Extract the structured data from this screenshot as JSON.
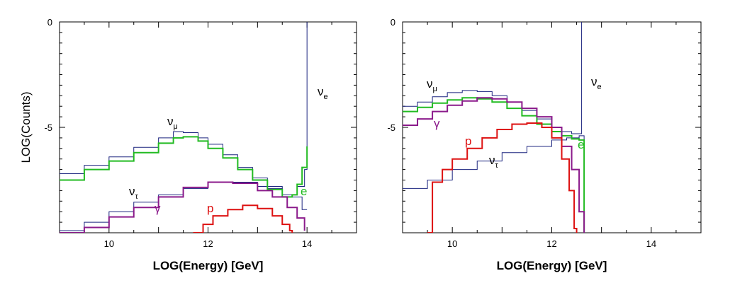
{
  "figure": {
    "ylabel": "LOG(Counts)"
  },
  "chart_data": [
    {
      "type": "line",
      "xlabel": "LOG(Energy) [GeV]",
      "ylabel": "LOG(Counts)",
      "xlim": [
        9,
        15
      ],
      "ylim": [
        -10,
        0
      ],
      "xticks": [
        "10",
        "12",
        "14"
      ],
      "yticks": [
        "0",
        "-5"
      ],
      "step": true,
      "series": [
        {
          "name": "ν_μ",
          "label": "ν",
          "sub": "μ",
          "color": "#1a237e",
          "x": [
            9.0,
            9.5,
            10.0,
            10.5,
            11.0,
            11.3,
            11.5,
            11.8,
            12.0,
            12.3,
            12.6,
            12.9,
            13.2,
            13.5,
            13.8,
            13.95,
            14.0
          ],
          "y": [
            -7.2,
            -6.8,
            -6.4,
            -5.95,
            -5.5,
            -5.2,
            -5.25,
            -5.5,
            -5.8,
            -6.3,
            -6.9,
            -7.4,
            -7.9,
            -8.2,
            -7.8,
            -7.0,
            0
          ]
        },
        {
          "name": "ν_τ",
          "label": "ν",
          "sub": "τ",
          "color": "#1a237e",
          "x": [
            9.0,
            9.5,
            10.0,
            10.5,
            11.0,
            11.5,
            12.0,
            12.5,
            13.0,
            13.5,
            13.9,
            14.0
          ],
          "y": [
            -9.9,
            -9.5,
            -9.0,
            -8.55,
            -8.2,
            -7.9,
            -7.6,
            -7.6,
            -7.8,
            -8.3,
            -8.9,
            -8.9
          ]
        },
        {
          "name": "e",
          "label": "e",
          "sub": "",
          "color": "#22bb22",
          "x": [
            9.0,
            9.5,
            10.0,
            10.5,
            11.0,
            11.3,
            11.5,
            11.8,
            12.0,
            12.3,
            12.6,
            12.9,
            13.2,
            13.5,
            13.7,
            13.8,
            13.9,
            14.0
          ],
          "y": [
            -7.5,
            -7.0,
            -6.6,
            -6.2,
            -5.75,
            -5.5,
            -5.45,
            -5.65,
            -6.0,
            -6.45,
            -7.0,
            -7.5,
            -7.95,
            -8.3,
            -8.2,
            -7.7,
            -6.9,
            -5.9
          ]
        },
        {
          "name": "γ",
          "label": "γ",
          "sub": "",
          "color": "#8b1a8b",
          "x": [
            9.0,
            9.5,
            10.0,
            10.5,
            11.0,
            11.5,
            12.0,
            12.5,
            13.0,
            13.3,
            13.6,
            13.8,
            13.95
          ],
          "y": [
            -10.0,
            -9.75,
            -9.25,
            -8.8,
            -8.3,
            -7.85,
            -7.6,
            -7.65,
            -8.0,
            -8.3,
            -8.8,
            -9.3,
            -9.9
          ]
        },
        {
          "name": "p",
          "label": "p",
          "sub": "",
          "color": "#dd1111",
          "x": [
            11.7,
            11.9,
            12.1,
            12.4,
            12.7,
            13.0,
            13.3,
            13.5,
            13.65,
            13.7
          ],
          "y": [
            -10.0,
            -9.6,
            -9.2,
            -8.9,
            -8.7,
            -8.85,
            -9.2,
            -9.6,
            -9.9,
            -10.0
          ]
        }
      ]
    },
    {
      "type": "line",
      "xlabel": "LOG(Energy) [GeV]",
      "ylabel": "",
      "xlim": [
        9,
        15
      ],
      "ylim": [
        -10,
        0
      ],
      "xticks": [
        "10",
        "12",
        "14"
      ],
      "yticks": [
        "0",
        "-5"
      ],
      "step": true,
      "series": [
        {
          "name": "ν_μ",
          "label": "ν",
          "sub": "μ",
          "color": "#1a237e",
          "x": [
            9.0,
            9.3,
            9.6,
            9.9,
            10.2,
            10.5,
            10.8,
            11.1,
            11.4,
            11.7,
            12.0,
            12.2,
            12.4,
            12.55,
            12.6
          ],
          "y": [
            -4.0,
            -3.8,
            -3.55,
            -3.35,
            -3.25,
            -3.3,
            -3.5,
            -3.8,
            -4.2,
            -4.6,
            -5.0,
            -5.2,
            -5.3,
            -5.3,
            0
          ]
        },
        {
          "name": "ν_τ",
          "label": "ν",
          "sub": "τ",
          "color": "#1a237e",
          "x": [
            9.0,
            9.5,
            10.0,
            10.5,
            11.0,
            11.5,
            12.0,
            12.3,
            12.55,
            12.65
          ],
          "y": [
            -7.9,
            -7.5,
            -7.0,
            -6.6,
            -6.2,
            -5.9,
            -5.6,
            -5.5,
            -5.4,
            -10.0
          ]
        },
        {
          "name": "e",
          "label": "e",
          "sub": "",
          "color": "#22bb22",
          "x": [
            9.0,
            9.3,
            9.6,
            9.9,
            10.2,
            10.5,
            10.8,
            11.1,
            11.4,
            11.7,
            12.0,
            12.2,
            12.4,
            12.55,
            12.65
          ],
          "y": [
            -4.25,
            -4.05,
            -3.85,
            -3.7,
            -3.6,
            -3.65,
            -3.8,
            -4.1,
            -4.45,
            -4.85,
            -5.2,
            -5.4,
            -5.55,
            -5.6,
            -10.0
          ]
        },
        {
          "name": "γ",
          "label": "γ",
          "sub": "",
          "color": "#8b1a8b",
          "x": [
            9.0,
            9.3,
            9.6,
            9.9,
            10.2,
            10.5,
            10.8,
            11.1,
            11.4,
            11.7,
            12.0,
            12.2,
            12.4,
            12.55,
            12.65
          ],
          "y": [
            -4.9,
            -4.6,
            -4.25,
            -3.95,
            -3.75,
            -3.6,
            -3.65,
            -3.8,
            -4.1,
            -4.5,
            -5.0,
            -5.9,
            -7.0,
            -9.0,
            -10.0
          ]
        },
        {
          "name": "p",
          "label": "p",
          "sub": "",
          "color": "#dd1111",
          "x": [
            9.5,
            9.6,
            9.8,
            10.0,
            10.3,
            10.6,
            10.9,
            11.2,
            11.5,
            11.8,
            12.0,
            12.2,
            12.35,
            12.45,
            12.5
          ],
          "y": [
            -10.0,
            -7.6,
            -7.0,
            -6.5,
            -6.0,
            -5.5,
            -5.1,
            -4.85,
            -4.8,
            -5.0,
            -5.5,
            -6.5,
            -8.0,
            -9.8,
            -10.0
          ]
        }
      ]
    }
  ]
}
